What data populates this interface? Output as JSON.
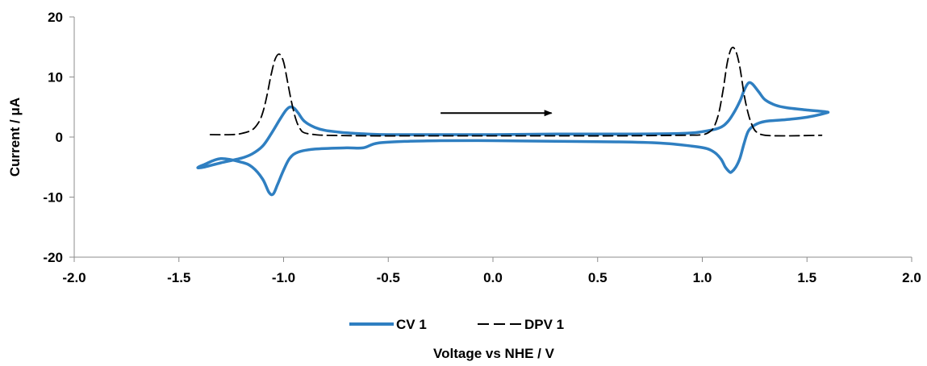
{
  "chart_data": {
    "type": "line",
    "title": "",
    "xlabel": "Voltage vs NHE  / V",
    "ylabel": "Current / μA",
    "xlim": [
      -2.0,
      2.0
    ],
    "ylim": [
      -20,
      20
    ],
    "xticks": [
      "-2.0",
      "-1.5",
      "-1.0",
      "-0.5",
      "0.0",
      "0.5",
      "1.0",
      "1.5",
      "2.0"
    ],
    "xtick_values": [
      -2.0,
      -1.5,
      -1.0,
      -0.5,
      0.0,
      0.5,
      1.0,
      1.5,
      2.0
    ],
    "yticks": [
      "20",
      "10",
      "0",
      "-10",
      "-20"
    ],
    "ytick_values": [
      20,
      10,
      0,
      -10,
      -20
    ],
    "grid": false,
    "legend_position": "bottom",
    "series": [
      {
        "name": "CV 1",
        "color": "#2F7FC1",
        "style": "solid",
        "x": [
          -0.25,
          -0.4,
          -0.55,
          -0.62,
          -0.7,
          -0.85,
          -0.93,
          -0.97,
          -1.0,
          -1.03,
          -1.05,
          -1.07,
          -1.1,
          -1.15,
          -1.2,
          -1.3,
          -1.38,
          -1.41,
          -1.38,
          -1.3,
          -1.2,
          -1.15,
          -1.1,
          -1.06,
          -1.02,
          -0.99,
          -0.97,
          -0.95,
          -0.93,
          -0.9,
          -0.85,
          -0.8,
          -0.7,
          -0.6,
          -0.5,
          -0.3,
          0.0,
          0.3,
          0.6,
          0.9,
          1.0,
          1.08,
          1.12,
          1.15,
          1.18,
          1.2,
          1.22,
          1.24,
          1.27,
          1.3,
          1.35,
          1.4,
          1.5,
          1.59,
          1.59,
          1.5,
          1.4,
          1.3,
          1.25,
          1.22,
          1.2,
          1.18,
          1.16,
          1.14,
          1.13,
          1.11,
          1.09,
          1.06,
          1.02,
          0.95,
          0.8,
          0.6,
          0.3,
          0.0,
          -0.25
        ],
        "y": [
          -0.6,
          -0.7,
          -1.0,
          -1.8,
          -1.8,
          -2.0,
          -2.5,
          -3.5,
          -5.5,
          -8.0,
          -9.5,
          -9.2,
          -7.0,
          -5.0,
          -4.2,
          -3.6,
          -4.6,
          -5.1,
          -5.0,
          -4.3,
          -3.5,
          -2.8,
          -1.5,
          0.5,
          2.8,
          4.4,
          5.0,
          4.8,
          4.0,
          2.6,
          1.6,
          1.1,
          0.7,
          0.5,
          0.4,
          0.4,
          0.4,
          0.5,
          0.5,
          0.6,
          0.9,
          1.5,
          2.5,
          4.0,
          6.0,
          7.8,
          9.0,
          8.8,
          7.5,
          6.2,
          5.3,
          4.9,
          4.5,
          4.2,
          4.0,
          3.3,
          2.9,
          2.6,
          2.0,
          1.0,
          -1.0,
          -3.5,
          -5.0,
          -5.8,
          -5.8,
          -5.0,
          -3.7,
          -2.6,
          -1.9,
          -1.5,
          -1.0,
          -0.8,
          -0.7,
          -0.6,
          -0.6
        ]
      },
      {
        "name": "DPV 1",
        "color": "#000000",
        "style": "dashed",
        "x": [
          -1.35,
          -1.25,
          -1.2,
          -1.15,
          -1.12,
          -1.1,
          -1.08,
          -1.06,
          -1.04,
          -1.02,
          -1.0,
          -0.98,
          -0.96,
          -0.94,
          -0.92,
          -0.9,
          -0.85,
          -0.8,
          -0.6,
          -0.3,
          0.0,
          0.3,
          0.6,
          0.9,
          1.0,
          1.04,
          1.06,
          1.08,
          1.1,
          1.12,
          1.14,
          1.16,
          1.18,
          1.2,
          1.22,
          1.24,
          1.26,
          1.3,
          1.4,
          1.57
        ],
        "y": [
          0.4,
          0.4,
          0.6,
          1.2,
          2.4,
          4.0,
          6.8,
          10.3,
          13.0,
          13.8,
          12.5,
          9.0,
          5.5,
          2.8,
          1.3,
          0.7,
          0.4,
          0.3,
          0.2,
          0.2,
          0.2,
          0.2,
          0.2,
          0.3,
          0.4,
          1.0,
          2.0,
          4.2,
          8.0,
          12.5,
          14.8,
          14.3,
          11.5,
          7.0,
          3.8,
          1.8,
          0.8,
          0.3,
          0.2,
          0.3
        ]
      }
    ],
    "annotations": [
      {
        "type": "arrow",
        "from": [
          -0.25,
          4.0
        ],
        "to": [
          0.28,
          4.0
        ],
        "color": "#000000"
      }
    ]
  }
}
